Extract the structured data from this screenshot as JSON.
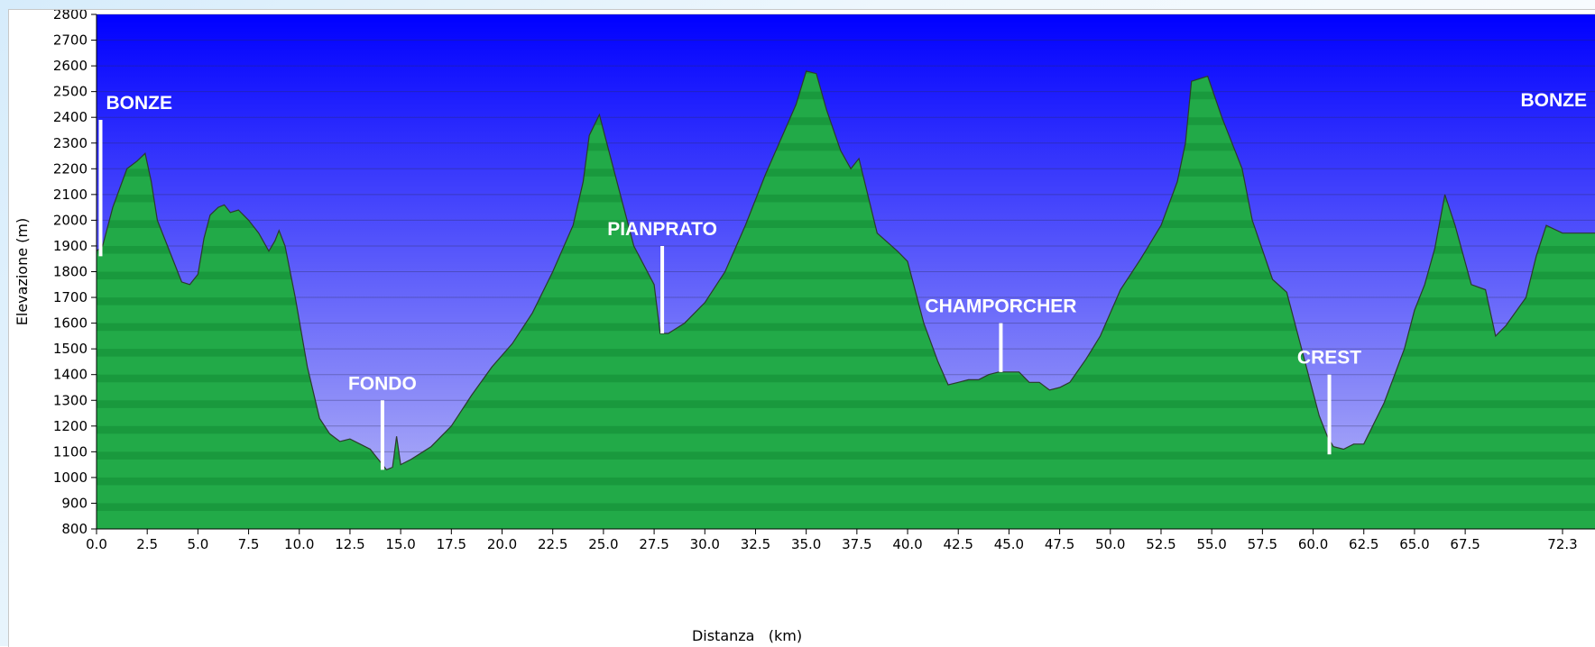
{
  "chart_data": {
    "type": "area",
    "xlabel": "Distanza   (km)",
    "ylabel": "Elevazione (m)",
    "xlim": [
      0,
      72.3
    ],
    "ylim": [
      800,
      2800
    ],
    "x_ticks": [
      0,
      2.5,
      5,
      7.5,
      10,
      12.5,
      15,
      17.5,
      20,
      22.5,
      25,
      27.5,
      30,
      32.5,
      35,
      37.5,
      40,
      42.5,
      45,
      47.5,
      50,
      52.5,
      55,
      57.5,
      60,
      62.5,
      65,
      67.5,
      72.3
    ],
    "x_tick_labels": [
      "0.0",
      "2.5",
      "5.0",
      "7.5",
      "10.0",
      "12.5",
      "15.0",
      "17.5",
      "20.0",
      "22.5",
      "25.0",
      "27.5",
      "30.0",
      "32.5",
      "35.0",
      "37.5",
      "40.0",
      "42.5",
      "45.0",
      "47.5",
      "50.0",
      "52.5",
      "55.0",
      "57.5",
      "60.0",
      "62.5",
      "65.0",
      "67.5",
      "72.3"
    ],
    "y_ticks": [
      800,
      900,
      1000,
      1100,
      1200,
      1300,
      1400,
      1500,
      1600,
      1700,
      1800,
      1900,
      2000,
      2100,
      2200,
      2300,
      2400,
      2500,
      2600,
      2700,
      2800
    ],
    "grid": true,
    "fill_colors": {
      "sky_top": "#0000ff",
      "sky_bottom": "#bcbcf6",
      "terrain_light": "#22aa48",
      "terrain_dark": "#138a35",
      "outline": "#2c3a2c",
      "marker": "#ffffff"
    },
    "series": [
      {
        "x": [
          0,
          0.3,
          0.8,
          1.5,
          2.0,
          2.4,
          2.7,
          3.0,
          3.5,
          4.2,
          4.6,
          5.0,
          5.3,
          5.6,
          6.0,
          6.3,
          6.6,
          7.0,
          7.5,
          8.0,
          8.5,
          8.8,
          9.0,
          9.3,
          9.8,
          10.4,
          11.0,
          11.5,
          12.0,
          12.5,
          13.0,
          13.5,
          14.0,
          14.3,
          14.6,
          14.8,
          15.0,
          15.5,
          16.5,
          17.5,
          18.5,
          19.5,
          20.5,
          21.5,
          22.5,
          23.5,
          24.0,
          24.3,
          24.8,
          25.5,
          26.5,
          27.5,
          27.8,
          28.2,
          29.0,
          30.0,
          31.0,
          32.0,
          33.0,
          34.0,
          34.5,
          35.0,
          35.5,
          36.0,
          36.7,
          37.2,
          37.6,
          38.5,
          39.5,
          40.0,
          40.8,
          41.5,
          42.0,
          42.5,
          43.0,
          43.5,
          44.0,
          44.5,
          45.0,
          45.5,
          46.0,
          46.5,
          47.0,
          47.5,
          48.0,
          48.8,
          49.5,
          50.5,
          51.5,
          52.5,
          53.3,
          53.7,
          54.0,
          54.8,
          55.5,
          56.5,
          57.0,
          58.0,
          58.7,
          59.5,
          60.3,
          60.7,
          61.0,
          61.5,
          62.0,
          62.5,
          63.5,
          64.5,
          65.0,
          65.5,
          66.0,
          66.5,
          67.0,
          67.8,
          68.5,
          69.0,
          69.5,
          70.5,
          71.0,
          71.5,
          72.3
        ],
        "y": [
          1880,
          1900,
          2050,
          2200,
          2230,
          2260,
          2150,
          2000,
          1900,
          1760,
          1750,
          1790,
          1930,
          2020,
          2050,
          2060,
          2030,
          2040,
          2000,
          1950,
          1880,
          1920,
          1960,
          1900,
          1700,
          1430,
          1230,
          1170,
          1140,
          1150,
          1130,
          1110,
          1060,
          1030,
          1040,
          1160,
          1050,
          1070,
          1120,
          1200,
          1320,
          1430,
          1520,
          1640,
          1800,
          1980,
          2150,
          2330,
          2410,
          2200,
          1900,
          1750,
          1560,
          1560,
          1600,
          1680,
          1800,
          1980,
          2180,
          2360,
          2450,
          2580,
          2570,
          2430,
          2270,
          2200,
          2240,
          1950,
          1880,
          1840,
          1600,
          1450,
          1360,
          1370,
          1380,
          1380,
          1400,
          1410,
          1410,
          1410,
          1370,
          1370,
          1340,
          1350,
          1370,
          1460,
          1550,
          1730,
          1850,
          1980,
          2150,
          2300,
          2540,
          2560,
          2400,
          2200,
          2000,
          1770,
          1720,
          1480,
          1240,
          1160,
          1120,
          1110,
          1130,
          1130,
          1290,
          1500,
          1650,
          1750,
          1890,
          2100,
          1980,
          1750,
          1730,
          1550,
          1590,
          1700,
          1860,
          1980,
          1950
        ]
      }
    ],
    "annotations": [
      {
        "label": "BONZE",
        "x": 0.2,
        "y_bottom": 1860,
        "y_top": 2390,
        "label_align": "start"
      },
      {
        "label": "FONDO",
        "x": 14.1,
        "y_bottom": 1030,
        "y_top": 1300,
        "label_align": "middle"
      },
      {
        "label": "PIANPRATO",
        "x": 27.9,
        "y_bottom": 1560,
        "y_top": 1900,
        "label_align": "middle"
      },
      {
        "label": "CHAMPORCHER",
        "x": 44.6,
        "y_bottom": 1410,
        "y_top": 1600,
        "label_align": "middle"
      },
      {
        "label": "CREST",
        "x": 60.8,
        "y_bottom": 1090,
        "y_top": 1400,
        "label_align": "middle"
      },
      {
        "label": "BONZE",
        "x": 72.3,
        "y_bottom": 2400,
        "y_top": 2400,
        "label_align": "end"
      }
    ]
  }
}
